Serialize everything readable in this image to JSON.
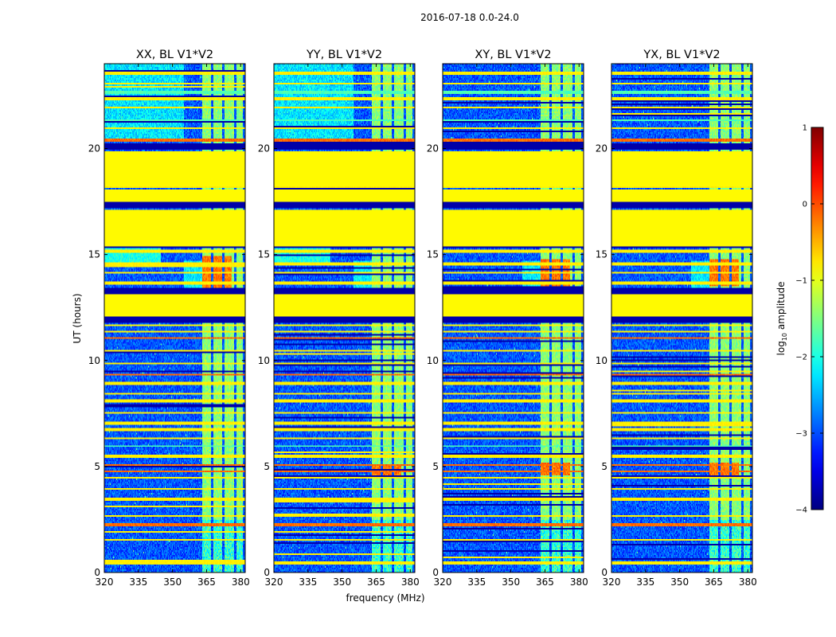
{
  "chart_data": {
    "type": "heatmap",
    "title": "2016-07-18 0.0-24.0",
    "xlabel": "frequency (MHz)",
    "ylabel": "UT (hours)",
    "xlim": [
      320,
      382
    ],
    "ylim": [
      0,
      24
    ],
    "xticks": [
      320,
      335,
      350,
      365,
      380
    ],
    "xtick_labels": [
      "320",
      "335",
      "350",
      "365",
      "380"
    ],
    "yticks": [
      0,
      5,
      10,
      15,
      20
    ],
    "ytick_labels": [
      "0",
      "5",
      "10",
      "15",
      "20"
    ],
    "panels": [
      {
        "name": "XX",
        "title": "XX, BL V1*V2",
        "strong_left_hours": [
          [
            13.3,
            14.9
          ]
        ],
        "cyan_top": true
      },
      {
        "name": "YY",
        "title": "YY, BL V1*V2",
        "strong_left_hours": [
          [
            4.4,
            5.0
          ]
        ],
        "cyan_top": true
      },
      {
        "name": "XY",
        "title": "XY, BL V1*V2",
        "strong_left_hours": [
          [
            13.5,
            14.8
          ],
          [
            4.6,
            5.2
          ]
        ],
        "cyan_top": false
      },
      {
        "name": "YX",
        "title": "YX, BL V1*V2",
        "strong_left_hours": [
          [
            13.5,
            14.8
          ],
          [
            4.6,
            5.2
          ]
        ],
        "cyan_top": false
      }
    ],
    "flagged_blocks_hours": [
      [
        17.5,
        18.1
      ],
      [
        18.2,
        19.9
      ],
      [
        15.4,
        17.1
      ],
      [
        11.6,
        11.7
      ],
      [
        12.1,
        13.1
      ]
    ],
    "rfi_band_mhz": [
      363,
      382
    ],
    "rfi_subbands_mhz": [
      [
        363,
        367
      ],
      [
        368,
        372
      ],
      [
        373,
        377
      ],
      [
        378,
        381
      ]
    ],
    "colorbar": {
      "label": "log10 amplitude",
      "range": [
        -4,
        1
      ],
      "ticks": [
        -4,
        -3,
        -2,
        -1,
        0,
        1
      ],
      "tick_labels": [
        "−4",
        "−3",
        "−2",
        "−1",
        "0",
        "1"
      ],
      "colormap": "jet"
    }
  }
}
